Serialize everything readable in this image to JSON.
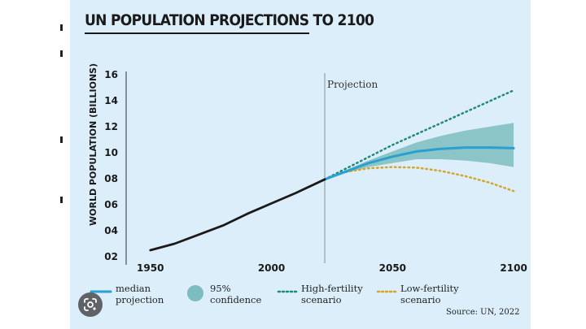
{
  "page": {
    "title": "UN POPULATION PROJECTIONS TO 2100",
    "source": "Source: UN, 2022",
    "projection_label": "Projection"
  },
  "colors": {
    "background": "#dceef9",
    "historical": "#1a1a1a",
    "median": "#2a9fd0",
    "confidence": "#7cbdbf",
    "high": "#1f8a78",
    "low": "#d4a628"
  },
  "legend": [
    {
      "id": "median",
      "line1": "median",
      "line2": "projection"
    },
    {
      "id": "confidence",
      "line1": "95%",
      "line2": "confidence"
    },
    {
      "id": "high",
      "line1": "High-fertility",
      "line2": "scenario"
    },
    {
      "id": "low",
      "line1": "Low-fertility",
      "line2": "scenario"
    }
  ],
  "icons": {
    "lens": "google-lens-icon"
  },
  "chart_data": {
    "type": "line",
    "title": "UN POPULATION PROJECTIONS TO 2100",
    "ylabel": "WORLD POPULATION (BILLIONS)",
    "xlabel": "",
    "xlim": [
      1940,
      2105
    ],
    "ylim": [
      2,
      16
    ],
    "x_ticks": [
      1950,
      2000,
      2050,
      2100
    ],
    "x_tick_labels": [
      "1950",
      "2000",
      "2050",
      "2100"
    ],
    "y_ticks": [
      2,
      4,
      6,
      8,
      10,
      12,
      14,
      16
    ],
    "y_tick_labels": [
      "02",
      "04",
      "06",
      "08",
      "10",
      "12",
      "14",
      "16"
    ],
    "projection_start": 2022,
    "grid": false,
    "legend_position": "bottom",
    "series": [
      {
        "id": "historical",
        "x": [
          1950,
          1960,
          1970,
          1980,
          1990,
          2000,
          2010,
          2022
        ],
        "y": [
          2.5,
          3.0,
          3.7,
          4.4,
          5.3,
          6.1,
          6.9,
          7.95
        ]
      },
      {
        "id": "median",
        "name": "median projection",
        "x": [
          2022,
          2030,
          2040,
          2050,
          2060,
          2070,
          2080,
          2090,
          2100
        ],
        "y": [
          7.95,
          8.5,
          9.2,
          9.7,
          10.1,
          10.3,
          10.4,
          10.4,
          10.35
        ]
      },
      {
        "id": "confidence",
        "name": "95% confidence",
        "x": [
          2022,
          2030,
          2040,
          2050,
          2060,
          2070,
          2080,
          2090,
          2100
        ],
        "lower": [
          7.95,
          8.4,
          8.9,
          9.2,
          9.5,
          9.5,
          9.4,
          9.2,
          8.9
        ],
        "upper": [
          7.95,
          8.6,
          9.4,
          10.1,
          10.8,
          11.3,
          11.7,
          12.0,
          12.3
        ]
      },
      {
        "id": "high",
        "name": "High-fertility scenario",
        "x": [
          2022,
          2050,
          2100
        ],
        "y": [
          7.95,
          10.6,
          14.8
        ]
      },
      {
        "id": "low",
        "name": "Low-fertility scenario",
        "x": [
          2022,
          2030,
          2040,
          2050,
          2060,
          2070,
          2080,
          2090,
          2100
        ],
        "y": [
          7.95,
          8.5,
          8.8,
          8.9,
          8.85,
          8.6,
          8.2,
          7.7,
          7.05
        ]
      }
    ]
  }
}
